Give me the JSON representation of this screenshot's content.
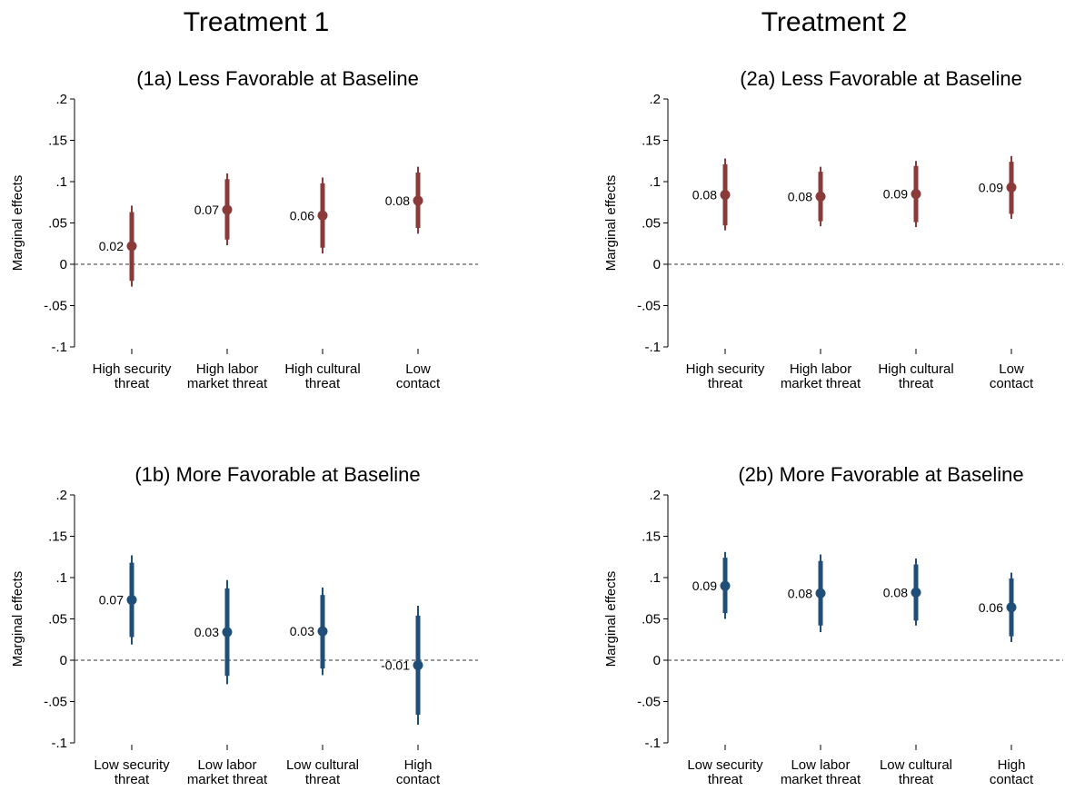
{
  "column_titles": [
    "Treatment 1",
    "Treatment 2"
  ],
  "colors": {
    "less_favorable": "#8b3a3a",
    "more_favorable": "#1f4e79"
  },
  "chart_data": [
    {
      "type": "scatter",
      "title": "(1a) Less Favorable at Baseline",
      "ylabel": "Marginal effects",
      "ylim": [
        -0.1,
        0.2
      ],
      "yticks": [
        ".2",
        ".15",
        ".1",
        ".05",
        "0",
        "-.05",
        "-.1"
      ],
      "reference_line": 0,
      "color": "#8b3a3a",
      "categories": [
        [
          "High security",
          "threat"
        ],
        [
          "High labor",
          "market threat"
        ],
        [
          "High cultural",
          "threat"
        ],
        [
          "Low",
          "contact"
        ]
      ],
      "estimates": [
        0.022,
        0.066,
        0.059,
        0.077
      ],
      "labels": [
        "0.02",
        "0.07",
        "0.06",
        "0.08"
      ],
      "ci_inner": [
        [
          -0.02,
          0.063
        ],
        [
          0.03,
          0.103
        ],
        [
          0.02,
          0.098
        ],
        [
          0.044,
          0.111
        ]
      ],
      "ci_outer": [
        [
          -0.027,
          0.071
        ],
        [
          0.023,
          0.11
        ],
        [
          0.013,
          0.105
        ],
        [
          0.037,
          0.118
        ]
      ]
    },
    {
      "type": "scatter",
      "title": "(2a) Less Favorable at Baseline",
      "ylabel": "Marginal effects",
      "ylim": [
        -0.1,
        0.2
      ],
      "yticks": [
        ".2",
        ".15",
        ".1",
        ".05",
        "0",
        "-.05",
        "-.1"
      ],
      "reference_line": 0,
      "color": "#8b3a3a",
      "categories": [
        [
          "High security",
          "threat"
        ],
        [
          "High labor",
          "market threat"
        ],
        [
          "High cultural",
          "threat"
        ],
        [
          "Low",
          "contact"
        ]
      ],
      "estimates": [
        0.084,
        0.082,
        0.085,
        0.093
      ],
      "labels": [
        "0.08",
        "0.08",
        "0.09",
        "0.09"
      ],
      "ci_inner": [
        [
          0.047,
          0.121
        ],
        [
          0.052,
          0.112
        ],
        [
          0.051,
          0.119
        ],
        [
          0.061,
          0.124
        ]
      ],
      "ci_outer": [
        [
          0.041,
          0.128
        ],
        [
          0.046,
          0.118
        ],
        [
          0.045,
          0.125
        ],
        [
          0.055,
          0.131
        ]
      ]
    },
    {
      "type": "scatter",
      "title": "(1b) More Favorable at Baseline",
      "ylabel": "Marginal effects",
      "ylim": [
        -0.1,
        0.2
      ],
      "yticks": [
        ".2",
        ".15",
        ".1",
        ".05",
        "0",
        "-.05",
        "-.1"
      ],
      "reference_line": 0,
      "color": "#1f4e79",
      "categories": [
        [
          "Low security",
          "threat"
        ],
        [
          "Low labor",
          "market threat"
        ],
        [
          "Low cultural",
          "threat"
        ],
        [
          "High",
          "contact"
        ]
      ],
      "estimates": [
        0.073,
        0.034,
        0.035,
        -0.006
      ],
      "labels": [
        "0.07",
        "0.03",
        "0.03",
        "-0.01"
      ],
      "ci_inner": [
        [
          0.028,
          0.118
        ],
        [
          -0.019,
          0.087
        ],
        [
          -0.01,
          0.079
        ],
        [
          -0.066,
          0.054
        ]
      ],
      "ci_outer": [
        [
          0.019,
          0.127
        ],
        [
          -0.029,
          0.097
        ],
        [
          -0.018,
          0.088
        ],
        [
          -0.078,
          0.066
        ]
      ]
    },
    {
      "type": "scatter",
      "title": "(2b) More Favorable at Baseline",
      "ylabel": "Marginal effects",
      "ylim": [
        -0.1,
        0.2
      ],
      "yticks": [
        ".2",
        ".15",
        ".1",
        ".05",
        "0",
        "-.05",
        "-.1"
      ],
      "reference_line": 0,
      "color": "#1f4e79",
      "categories": [
        [
          "Low security",
          "threat"
        ],
        [
          "Low labor",
          "market threat"
        ],
        [
          "Low cultural",
          "threat"
        ],
        [
          "High",
          "contact"
        ]
      ],
      "estimates": [
        0.09,
        0.081,
        0.082,
        0.064
      ],
      "labels": [
        "0.09",
        "0.08",
        "0.08",
        "0.06"
      ],
      "ci_inner": [
        [
          0.057,
          0.124
        ],
        [
          0.042,
          0.12
        ],
        [
          0.048,
          0.116
        ],
        [
          0.029,
          0.099
        ]
      ],
      "ci_outer": [
        [
          0.05,
          0.131
        ],
        [
          0.034,
          0.128
        ],
        [
          0.042,
          0.123
        ],
        [
          0.022,
          0.106
        ]
      ]
    }
  ]
}
